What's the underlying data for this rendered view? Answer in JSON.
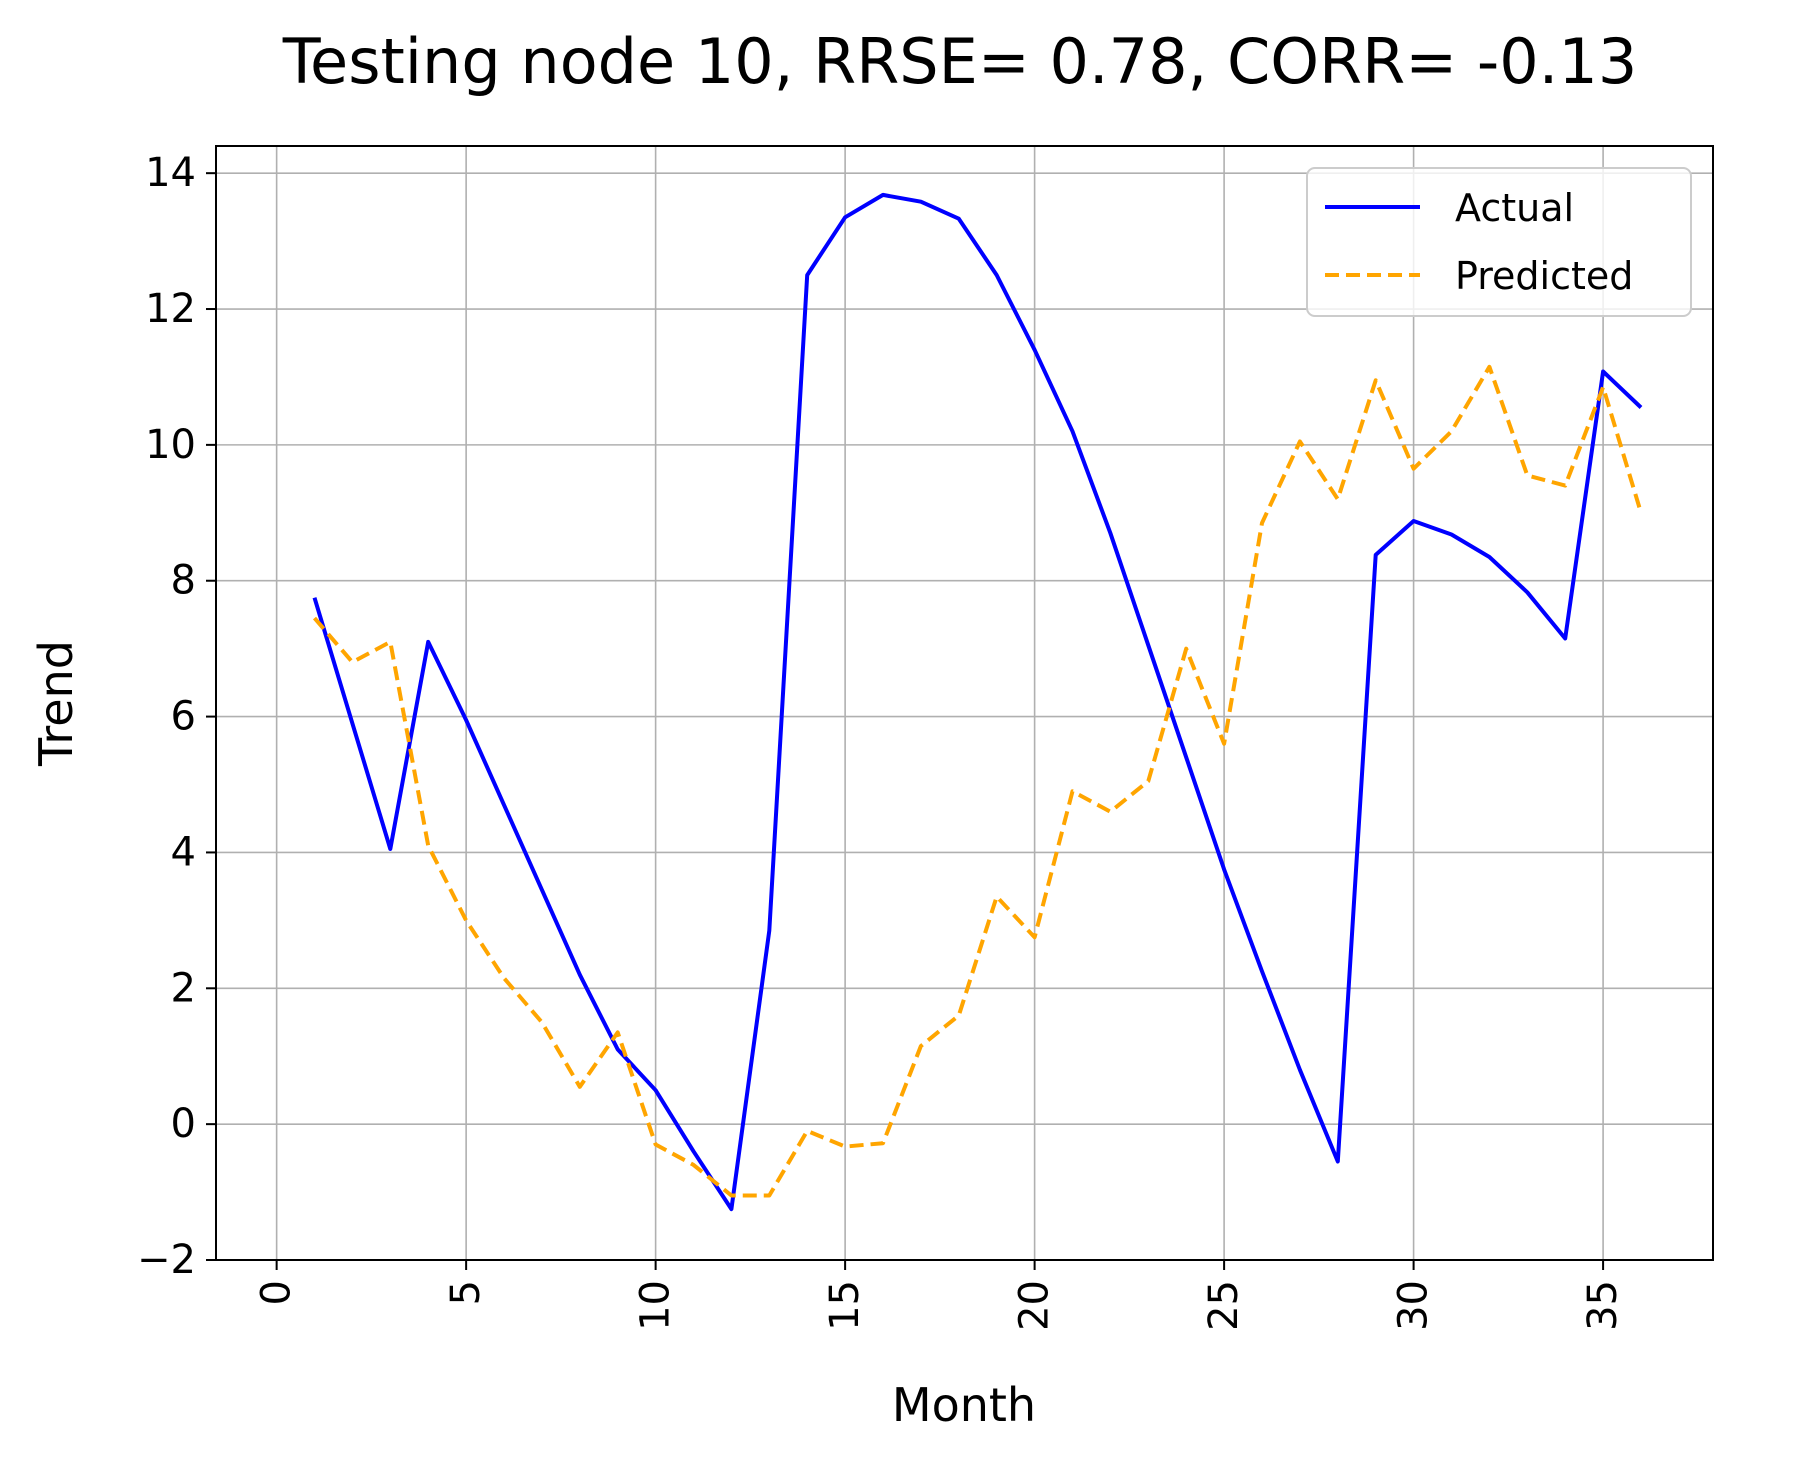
{
  "chart_data": {
    "type": "line",
    "title": "Testing node 10, RRSE= 0.78, CORR= -0.13",
    "xlabel": "Month",
    "ylabel": "Trend",
    "xlim": [
      -1.6,
      37.9
    ],
    "ylim": [
      -2.0,
      14.4
    ],
    "xticks": [
      0,
      5,
      10,
      15,
      20,
      25,
      30,
      35
    ],
    "xtick_labels": [
      "0",
      "5",
      "10",
      "15",
      "20",
      "25",
      "30",
      "35"
    ],
    "yticks": [
      -2,
      0,
      2,
      4,
      6,
      8,
      10,
      12,
      14
    ],
    "ytick_labels": [
      "−2",
      "0",
      "2",
      "4",
      "6",
      "8",
      "10",
      "12",
      "14"
    ],
    "xtick_rotation": 90,
    "grid": true,
    "legend_position": "top-right",
    "x": [
      1,
      2,
      3,
      4,
      5,
      6,
      7,
      8,
      9,
      10,
      11,
      12,
      13,
      14,
      15,
      16,
      17,
      18,
      19,
      20,
      21,
      22,
      23,
      24,
      25,
      26,
      27,
      28,
      29,
      30,
      31,
      32,
      33,
      34,
      35,
      36
    ],
    "series": [
      {
        "name": "Actual",
        "color": "#0000ff",
        "style": "solid",
        "values": [
          7.75,
          5.9,
          4.05,
          7.1,
          5.95,
          4.7,
          3.45,
          2.2,
          1.1,
          0.5,
          -0.4,
          -1.25,
          2.85,
          12.5,
          13.35,
          13.68,
          13.58,
          13.33,
          12.5,
          11.4,
          10.2,
          8.7,
          7.05,
          5.4,
          3.75,
          2.25,
          0.8,
          -0.55,
          8.38,
          8.88,
          8.68,
          8.35,
          7.83,
          7.15,
          11.08,
          10.55
        ]
      },
      {
        "name": "Predicted",
        "color": "#ffa500",
        "style": "dashed",
        "values": [
          7.45,
          6.8,
          7.1,
          4.1,
          3.0,
          2.15,
          1.5,
          0.55,
          1.35,
          -0.3,
          -0.6,
          -1.05,
          -1.05,
          -0.1,
          -0.33,
          -0.28,
          1.15,
          1.6,
          3.35,
          2.75,
          4.9,
          4.6,
          5.05,
          7.0,
          5.6,
          8.85,
          10.05,
          9.2,
          10.95,
          9.65,
          10.2,
          11.15,
          9.55,
          9.4,
          10.85,
          9.0
        ]
      }
    ]
  }
}
